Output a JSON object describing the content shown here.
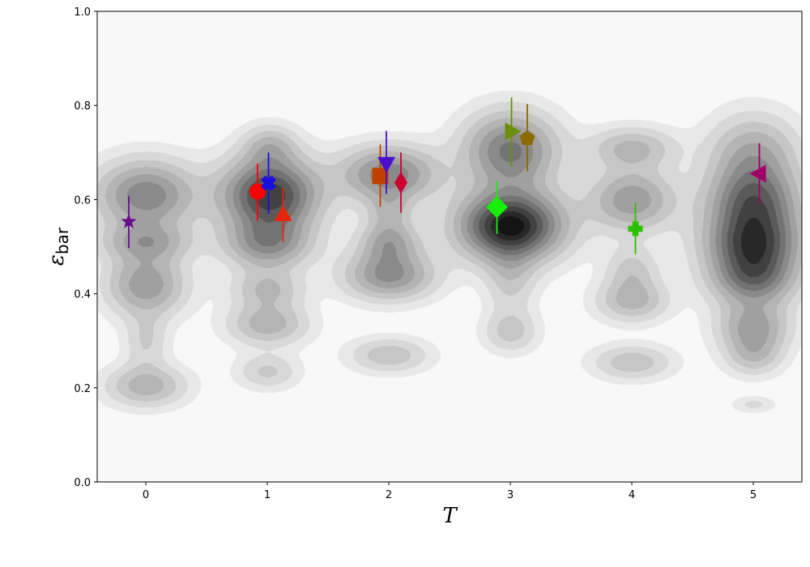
{
  "chart_data": {
    "type": "scatter",
    "background": "filled-contour-density",
    "xlabel": "T",
    "ylabel_main": "ε",
    "ylabel_sub": "bar",
    "xlim": [
      -0.4,
      5.4
    ],
    "ylim": [
      0.0,
      1.0
    ],
    "xticks": [
      "0",
      "1",
      "2",
      "3",
      "4",
      "5"
    ],
    "yticks": [
      "0.0",
      "0.2",
      "0.4",
      "0.6",
      "0.8",
      "1.0"
    ],
    "grid": false,
    "series": [
      {
        "marker": "star",
        "color": "#6a0d91",
        "x": -0.14,
        "y": 0.553,
        "err": [
          0.497,
          0.608
        ]
      },
      {
        "marker": "circle",
        "color": "#ff0000",
        "x": 0.92,
        "y": 0.617,
        "err": [
          0.555,
          0.677
        ]
      },
      {
        "marker": "x",
        "color": "#1a0ee0",
        "x": 1.01,
        "y": 0.635,
        "err": [
          0.57,
          0.7
        ]
      },
      {
        "marker": "triangle-up",
        "color": "#e8250b",
        "x": 1.13,
        "y": 0.568,
        "err": [
          0.51,
          0.625
        ]
      },
      {
        "marker": "square",
        "color": "#c04000",
        "x": 1.93,
        "y": 0.65,
        "err": [
          0.585,
          0.717
        ]
      },
      {
        "marker": "triangle-down",
        "color": "#4a0ecf",
        "x": 1.98,
        "y": 0.677,
        "err": [
          0.612,
          0.746
        ]
      },
      {
        "marker": "diamond-thin",
        "color": "#cc0033",
        "x": 2.1,
        "y": 0.636,
        "err": [
          0.572,
          0.7
        ]
      },
      {
        "marker": "diamond",
        "color": "#18ee08",
        "x": 2.89,
        "y": 0.584,
        "err": [
          0.527,
          0.64
        ]
      },
      {
        "marker": "triangle-right",
        "color": "#6b8e0b",
        "x": 3.01,
        "y": 0.745,
        "err": [
          0.67,
          0.817
        ]
      },
      {
        "marker": "pentagon",
        "color": "#8b6a00",
        "x": 3.14,
        "y": 0.73,
        "err": [
          0.66,
          0.803
        ]
      },
      {
        "marker": "plus",
        "color": "#2bc000",
        "x": 4.03,
        "y": 0.538,
        "err": [
          0.484,
          0.593
        ]
      },
      {
        "marker": "triangle-left",
        "color": "#a0006a",
        "x": 5.05,
        "y": 0.655,
        "err": [
          0.592,
          0.72
        ]
      }
    ],
    "density_blobs": [
      {
        "x": 0.0,
        "y": 0.61,
        "sx": 0.28,
        "sy": 0.05,
        "w": 0.55
      },
      {
        "x": 0.0,
        "y": 0.51,
        "sx": 0.25,
        "sy": 0.028,
        "w": 0.35
      },
      {
        "x": 0.0,
        "y": 0.42,
        "sx": 0.22,
        "sy": 0.045,
        "w": 0.45
      },
      {
        "x": 0.0,
        "y": 0.3,
        "sx": 0.12,
        "sy": 0.04,
        "w": 0.18
      },
      {
        "x": 0.0,
        "y": 0.205,
        "sx": 0.22,
        "sy": 0.03,
        "w": 0.33
      },
      {
        "x": 1.02,
        "y": 0.715,
        "sx": 0.15,
        "sy": 0.03,
        "w": 0.25
      },
      {
        "x": 1.02,
        "y": 0.61,
        "sx": 0.27,
        "sy": 0.055,
        "w": 0.85
      },
      {
        "x": 1.0,
        "y": 0.505,
        "sx": 0.24,
        "sy": 0.035,
        "w": 0.45
      },
      {
        "x": 1.0,
        "y": 0.41,
        "sx": 0.2,
        "sy": 0.03,
        "w": 0.28
      },
      {
        "x": 1.0,
        "y": 0.335,
        "sx": 0.22,
        "sy": 0.03,
        "w": 0.33
      },
      {
        "x": 1.0,
        "y": 0.235,
        "sx": 0.17,
        "sy": 0.025,
        "w": 0.2
      },
      {
        "x": 2.0,
        "y": 0.655,
        "sx": 0.27,
        "sy": 0.04,
        "w": 0.55
      },
      {
        "x": 2.0,
        "y": 0.575,
        "sx": 0.13,
        "sy": 0.03,
        "w": 0.23
      },
      {
        "x": 2.0,
        "y": 0.51,
        "sx": 0.17,
        "sy": 0.03,
        "w": 0.38
      },
      {
        "x": 2.0,
        "y": 0.44,
        "sx": 0.25,
        "sy": 0.035,
        "w": 0.5
      },
      {
        "x": 2.0,
        "y": 0.27,
        "sx": 0.22,
        "sy": 0.025,
        "w": 0.25
      },
      {
        "x": 3.0,
        "y": 0.705,
        "sx": 0.26,
        "sy": 0.055,
        "w": 0.6
      },
      {
        "x": 3.0,
        "y": 0.545,
        "sx": 0.29,
        "sy": 0.05,
        "w": 1.0
      },
      {
        "x": 3.0,
        "y": 0.43,
        "sx": 0.14,
        "sy": 0.05,
        "w": 0.2
      },
      {
        "x": 3.0,
        "y": 0.32,
        "sx": 0.15,
        "sy": 0.03,
        "w": 0.22
      },
      {
        "x": 4.0,
        "y": 0.71,
        "sx": 0.24,
        "sy": 0.03,
        "w": 0.3
      },
      {
        "x": 4.0,
        "y": 0.6,
        "sx": 0.24,
        "sy": 0.045,
        "w": 0.45
      },
      {
        "x": 4.0,
        "y": 0.45,
        "sx": 0.15,
        "sy": 0.035,
        "w": 0.22
      },
      {
        "x": 4.0,
        "y": 0.385,
        "sx": 0.2,
        "sy": 0.03,
        "w": 0.3
      },
      {
        "x": 4.0,
        "y": 0.255,
        "sx": 0.22,
        "sy": 0.025,
        "w": 0.25
      },
      {
        "x": 5.0,
        "y": 0.69,
        "sx": 0.25,
        "sy": 0.06,
        "w": 0.4
      },
      {
        "x": 5.0,
        "y": 0.59,
        "sx": 0.26,
        "sy": 0.05,
        "w": 0.6
      },
      {
        "x": 5.0,
        "y": 0.505,
        "sx": 0.27,
        "sy": 0.045,
        "w": 0.7
      },
      {
        "x": 5.0,
        "y": 0.43,
        "sx": 0.24,
        "sy": 0.04,
        "w": 0.55
      },
      {
        "x": 5.0,
        "y": 0.33,
        "sx": 0.2,
        "sy": 0.035,
        "w": 0.4
      },
      {
        "x": 5.0,
        "y": 0.27,
        "sx": 0.16,
        "sy": 0.03,
        "w": 0.25
      },
      {
        "x": 5.0,
        "y": 0.165,
        "sx": 0.12,
        "sy": 0.012,
        "w": 0.12
      }
    ]
  }
}
